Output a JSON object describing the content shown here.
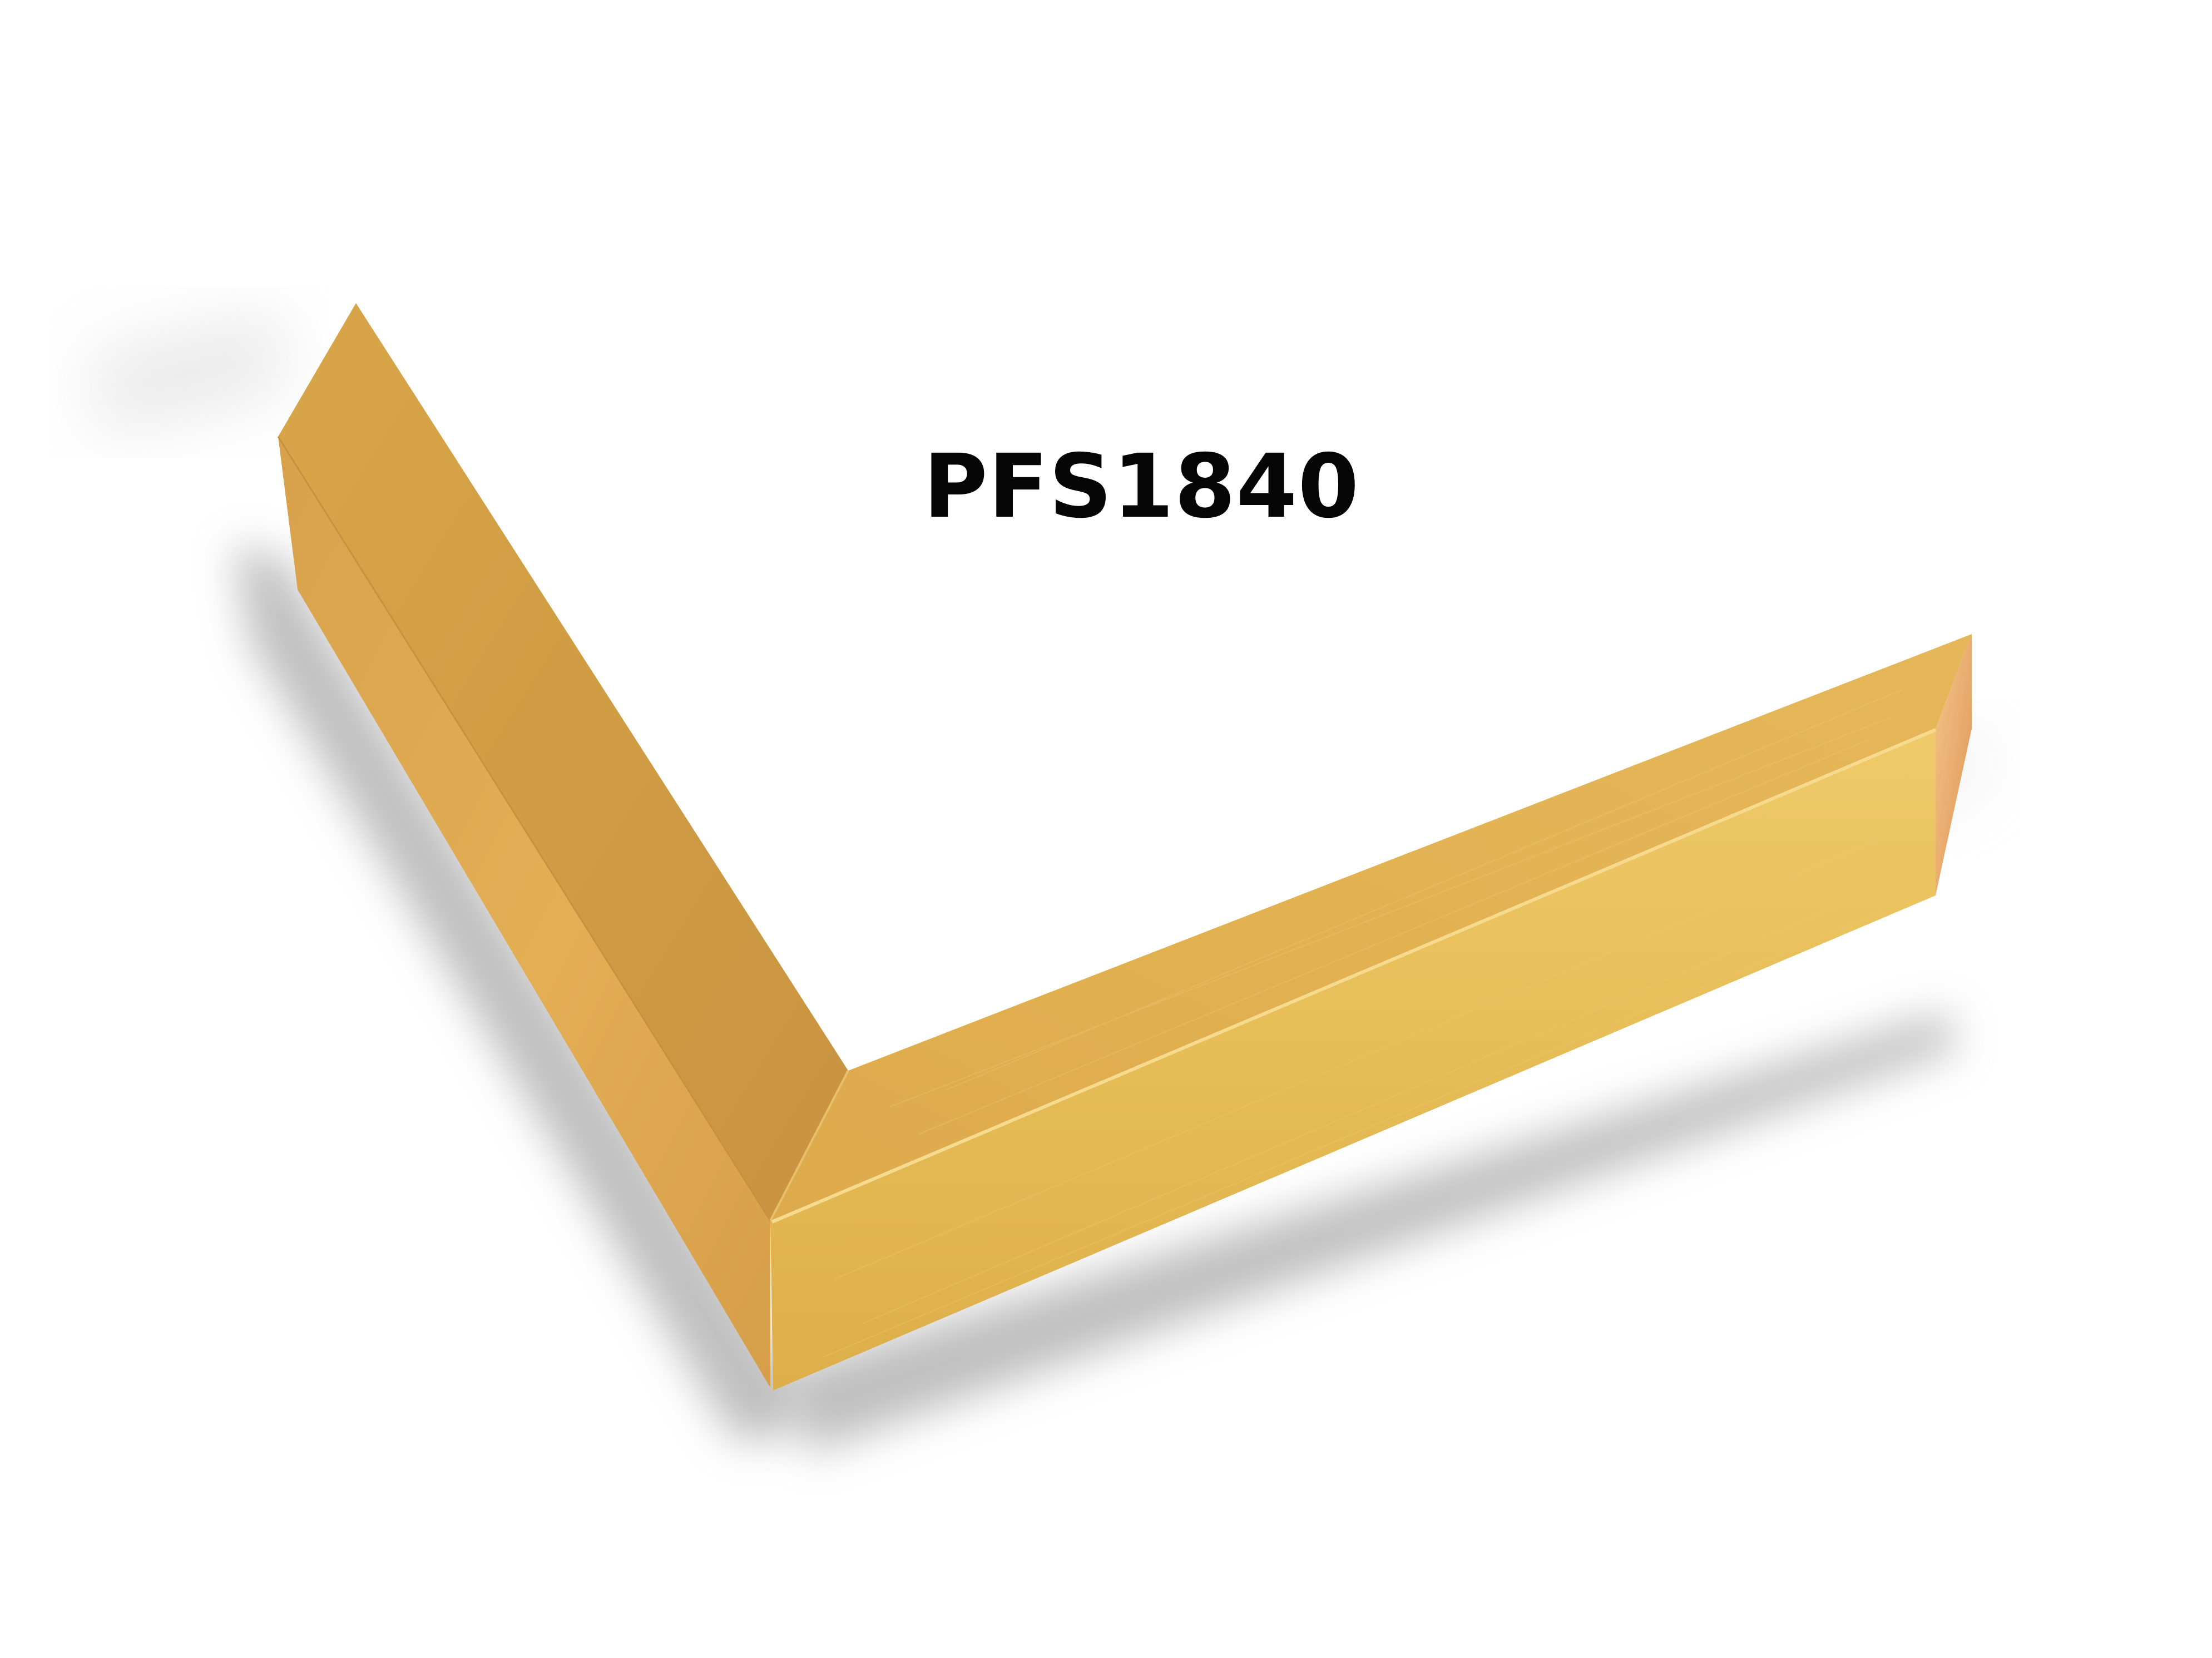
{
  "product": {
    "code": "PFS1840",
    "finish_colors": {
      "top_face": "#D19D44",
      "side_face": "#E3B04E",
      "front_face": "#E7BE58",
      "highlight": "#F3D37E",
      "shadow": "#7F7F7F",
      "background": "#FFFFFF"
    }
  }
}
